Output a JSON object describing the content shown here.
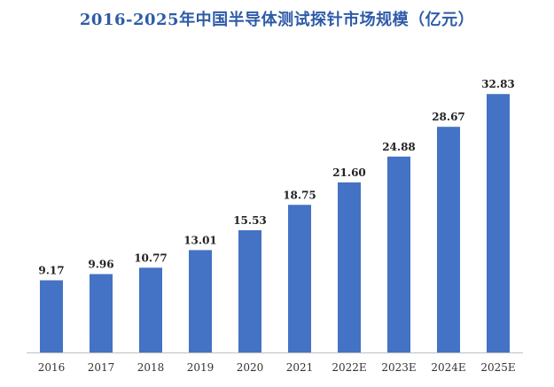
{
  "chart_data": {
    "type": "bar",
    "title": "2016-2025年中国半导体测试探针市场规模（亿元）",
    "categories": [
      "2016",
      "2017",
      "2018",
      "2019",
      "2020",
      "2021",
      "2022E",
      "2023E",
      "2024E",
      "2025E"
    ],
    "values": [
      9.17,
      9.96,
      10.77,
      13.01,
      15.53,
      18.75,
      21.6,
      24.88,
      28.67,
      32.83
    ],
    "value_labels": [
      "9.17",
      "9.96",
      "10.77",
      "13.01",
      "15.53",
      "18.75",
      "21.60",
      "24.88",
      "28.67",
      "32.83"
    ],
    "xlabel": "",
    "ylabel": "",
    "ylim": [
      0,
      36
    ],
    "grid": false,
    "legend": "none",
    "colors": {
      "bar": "#4472C4",
      "title": "#2E5BA8",
      "axis": "#BFBFBF"
    }
  }
}
